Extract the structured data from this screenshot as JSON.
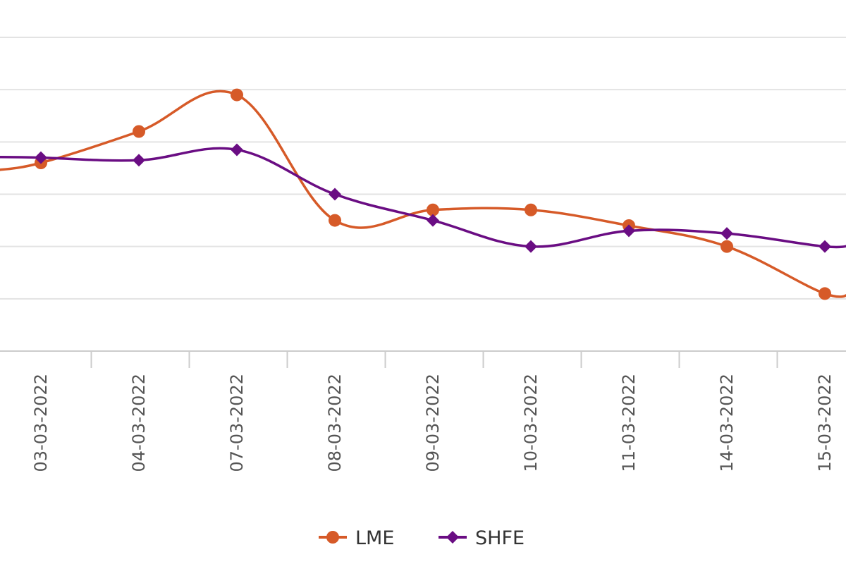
{
  "chart_data": {
    "type": "line",
    "title": "",
    "xlabel": "",
    "ylabel": "",
    "categories": [
      "03-03-2022",
      "04-03-2022",
      "07-03-2022",
      "08-03-2022",
      "09-03-2022",
      "10-03-2022",
      "11-03-2022",
      "14-03-2022",
      "15-03-2022"
    ],
    "ylim": [
      0,
      6
    ],
    "y_gridlines": [
      0,
      1,
      2,
      3,
      4,
      5,
      6
    ],
    "grid": true,
    "legend_position": "bottom",
    "series": [
      {
        "name": "LME",
        "color": "#D65A28",
        "marker": "circle",
        "values": [
          3.6,
          4.2,
          4.9,
          2.5,
          2.7,
          2.7,
          2.4,
          2.0,
          1.1
        ]
      },
      {
        "name": "SHFE",
        "color": "#6A0D83",
        "marker": "diamond",
        "values": [
          3.7,
          3.65,
          3.85,
          3.0,
          2.5,
          2.0,
          2.3,
          2.25,
          2.0
        ]
      }
    ]
  }
}
